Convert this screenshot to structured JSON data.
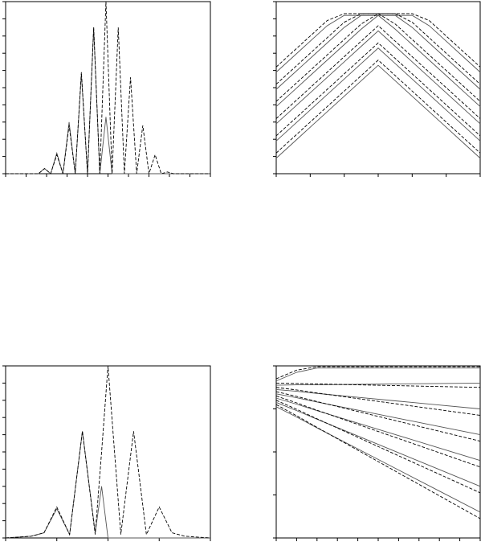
{
  "chart_data": [
    {
      "type": "line",
      "xlim": [
        -5,
        5
      ],
      "ylim": [
        0,
        10
      ],
      "xticks": [
        -5,
        -4,
        -3,
        -2,
        -1,
        0,
        1,
        2,
        3,
        4,
        5
      ],
      "yticks": [
        0,
        1,
        2,
        3,
        4,
        5,
        6,
        7,
        8,
        9,
        10
      ],
      "x": [
        -5,
        -3.4,
        -3.1,
        -2.8,
        -2.5,
        -2.2,
        -1.9,
        -1.6,
        -1.3,
        -1.0,
        -0.7,
        -0.4,
        -0.1,
        0.2,
        0.5,
        0.8,
        1.1,
        1.4,
        1.7,
        2.0,
        2.3,
        2.6,
        2.9,
        3.2,
        3.5,
        5
      ],
      "series": [
        {
          "color": "#555555",
          "dash": false,
          "values": [
            0,
            0,
            0.3,
            0,
            1.2,
            0,
            3.0,
            0,
            5.8,
            0,
            8.5,
            0,
            3.3,
            0,
            0,
            0,
            0,
            0,
            0,
            0,
            0,
            0,
            0,
            0,
            0,
            0
          ]
        },
        {
          "color": "#000000",
          "dash": true,
          "values": [
            0,
            0,
            0.3,
            0,
            1.1,
            0,
            2.8,
            0,
            5.9,
            0,
            8.5,
            0,
            10,
            0,
            8.5,
            0,
            5.6,
            0,
            2.8,
            0,
            1.1,
            0,
            0.1,
            0,
            0,
            0
          ]
        }
      ]
    },
    {
      "type": "line",
      "xlim": [
        0,
        6
      ],
      "ylim": [
        0,
        10
      ],
      "xticks": [
        0,
        1,
        2,
        3,
        4,
        5,
        6
      ],
      "yticks": [
        0,
        1,
        2,
        3,
        4,
        5,
        6,
        7,
        8,
        9,
        10
      ],
      "x": [
        0,
        0.5,
        1,
        1.5,
        2,
        2.5,
        3,
        3.5,
        4,
        4.5,
        5,
        5.5,
        6
      ],
      "series": [
        {
          "color": "#555555",
          "dash": false,
          "values": [
            0.9,
            1.8,
            2.7,
            3.6,
            4.5,
            5.4,
            6.3,
            5.4,
            4.5,
            3.6,
            2.7,
            1.8,
            0.9
          ]
        },
        {
          "color": "#555555",
          "dash": false,
          "values": [
            1.9,
            2.8,
            3.7,
            4.6,
            5.5,
            6.4,
            7.3,
            6.4,
            5.5,
            4.6,
            3.7,
            2.8,
            1.9
          ]
        },
        {
          "color": "#555555",
          "dash": false,
          "values": [
            2.9,
            3.8,
            4.7,
            5.6,
            6.5,
            7.4,
            8.3,
            7.4,
            6.5,
            5.6,
            4.7,
            3.8,
            2.9
          ]
        },
        {
          "color": "#555555",
          "dash": false,
          "values": [
            3.9,
            4.8,
            5.7,
            6.6,
            7.5,
            8.4,
            9.2,
            8.4,
            7.5,
            6.6,
            5.7,
            4.8,
            3.9
          ]
        },
        {
          "color": "#555555",
          "dash": false,
          "values": [
            4.9,
            5.8,
            6.7,
            7.6,
            8.5,
            9.2,
            9.2,
            9.2,
            8.5,
            7.6,
            6.7,
            5.8,
            4.9
          ]
        },
        {
          "color": "#555555",
          "dash": false,
          "values": [
            5.9,
            6.8,
            7.7,
            8.6,
            9.2,
            9.2,
            9.2,
            9.2,
            9.2,
            8.6,
            7.7,
            6.8,
            5.9
          ]
        },
        {
          "color": "#000000",
          "dash": true,
          "values": [
            1.2,
            2.1,
            3.0,
            3.9,
            4.8,
            5.7,
            6.6,
            5.7,
            4.8,
            3.9,
            3.0,
            2.1,
            1.2
          ]
        },
        {
          "color": "#000000",
          "dash": true,
          "values": [
            2.2,
            3.1,
            4.0,
            4.9,
            5.8,
            6.7,
            7.6,
            6.7,
            5.8,
            4.9,
            4.0,
            3.1,
            2.2
          ]
        },
        {
          "color": "#000000",
          "dash": true,
          "values": [
            3.2,
            4.1,
            5.0,
            5.9,
            6.8,
            7.7,
            8.6,
            7.7,
            6.8,
            5.9,
            5.0,
            4.1,
            3.2
          ]
        },
        {
          "color": "#000000",
          "dash": true,
          "values": [
            4.2,
            5.1,
            6.0,
            6.9,
            7.8,
            8.7,
            9.3,
            8.7,
            7.8,
            6.9,
            6.0,
            5.1,
            4.2
          ]
        },
        {
          "color": "#000000",
          "dash": true,
          "values": [
            5.2,
            6.1,
            7.0,
            7.9,
            8.8,
            9.3,
            9.3,
            9.3,
            8.8,
            7.9,
            7.0,
            6.1,
            5.2
          ]
        },
        {
          "color": "#000000",
          "dash": true,
          "values": [
            6.2,
            7.1,
            8.0,
            8.9,
            9.3,
            9.3,
            9.3,
            9.3,
            9.3,
            8.9,
            8.0,
            7.1,
            6.2
          ]
        }
      ]
    },
    {
      "type": "line",
      "xlim": [
        -2,
        2
      ],
      "ylim": [
        0,
        10
      ],
      "xticks": [
        -2,
        -1,
        0,
        1,
        2
      ],
      "yticks": [
        0,
        1,
        2,
        3,
        4,
        5,
        6,
        7,
        8,
        9,
        10
      ],
      "x": [
        -2,
        -1.5,
        -1.25,
        -1,
        -0.75,
        -0.5,
        -0.25,
        -0.125,
        0,
        0.25,
        0.5,
        0.75,
        1,
        1.25,
        1.5,
        2
      ],
      "series": [
        {
          "color": "#555555",
          "dash": false,
          "values": [
            0,
            0.1,
            0.3,
            1.7,
            0.2,
            6.2,
            0.3,
            3.0,
            0,
            0,
            0,
            0,
            0,
            0,
            0,
            0
          ]
        },
        {
          "color": "#000000",
          "dash": true,
          "values": [
            0,
            0.1,
            0.3,
            1.8,
            0.2,
            6.2,
            0.2,
            5.0,
            10,
            0.2,
            6.2,
            0.2,
            1.8,
            0.3,
            0.1,
            0
          ]
        }
      ]
    },
    {
      "type": "line",
      "xlim": [
        0,
        10
      ],
      "ylim": [
        0,
        4
      ],
      "xticks": [
        0,
        1,
        2,
        3,
        4,
        5,
        6,
        7,
        8,
        9,
        10
      ],
      "yticks": [
        0,
        1,
        2,
        3,
        4
      ],
      "x": [
        0,
        1,
        2,
        4,
        6,
        8,
        10
      ],
      "series": [
        {
          "color": "#555555",
          "dash": false,
          "values": [
            3.05,
            2.81,
            2.56,
            2.07,
            1.58,
            1.09,
            0.6
          ]
        },
        {
          "color": "#555555",
          "dash": false,
          "values": [
            3.15,
            2.96,
            2.76,
            2.37,
            1.98,
            1.59,
            1.2
          ]
        },
        {
          "color": "#555555",
          "dash": false,
          "values": [
            3.25,
            3.11,
            2.96,
            2.67,
            2.38,
            2.09,
            1.8
          ]
        },
        {
          "color": "#555555",
          "dash": false,
          "values": [
            3.35,
            3.26,
            3.16,
            2.97,
            2.78,
            2.59,
            2.4
          ]
        },
        {
          "color": "#555555",
          "dash": false,
          "values": [
            3.45,
            3.41,
            3.36,
            3.27,
            3.18,
            3.09,
            3.0
          ]
        },
        {
          "color": "#555555",
          "dash": false,
          "values": [
            3.55,
            3.56,
            3.56,
            3.57,
            3.58,
            3.59,
            3.6
          ]
        },
        {
          "color": "#555555",
          "dash": false,
          "values": [
            3.65,
            3.85,
            3.95,
            3.95,
            3.95,
            3.95,
            3.95
          ]
        },
        {
          "color": "#000000",
          "dash": true,
          "values": [
            3.1,
            2.84,
            2.57,
            2.04,
            1.51,
            0.98,
            0.45
          ]
        },
        {
          "color": "#000000",
          "dash": true,
          "values": [
            3.2,
            2.99,
            2.77,
            2.34,
            1.91,
            1.48,
            1.05
          ]
        },
        {
          "color": "#000000",
          "dash": true,
          "values": [
            3.3,
            3.14,
            2.97,
            2.64,
            2.31,
            1.98,
            1.65
          ]
        },
        {
          "color": "#000000",
          "dash": true,
          "values": [
            3.4,
            3.29,
            3.17,
            2.94,
            2.71,
            2.48,
            2.25
          ]
        },
        {
          "color": "#000000",
          "dash": true,
          "values": [
            3.5,
            3.44,
            3.37,
            3.24,
            3.11,
            2.98,
            2.85
          ]
        },
        {
          "color": "#000000",
          "dash": true,
          "values": [
            3.6,
            3.59,
            3.58,
            3.56,
            3.54,
            3.52,
            3.5
          ]
        },
        {
          "color": "#000000",
          "dash": true,
          "values": [
            3.7,
            3.9,
            3.98,
            3.98,
            3.98,
            3.98,
            3.98
          ]
        }
      ]
    }
  ]
}
